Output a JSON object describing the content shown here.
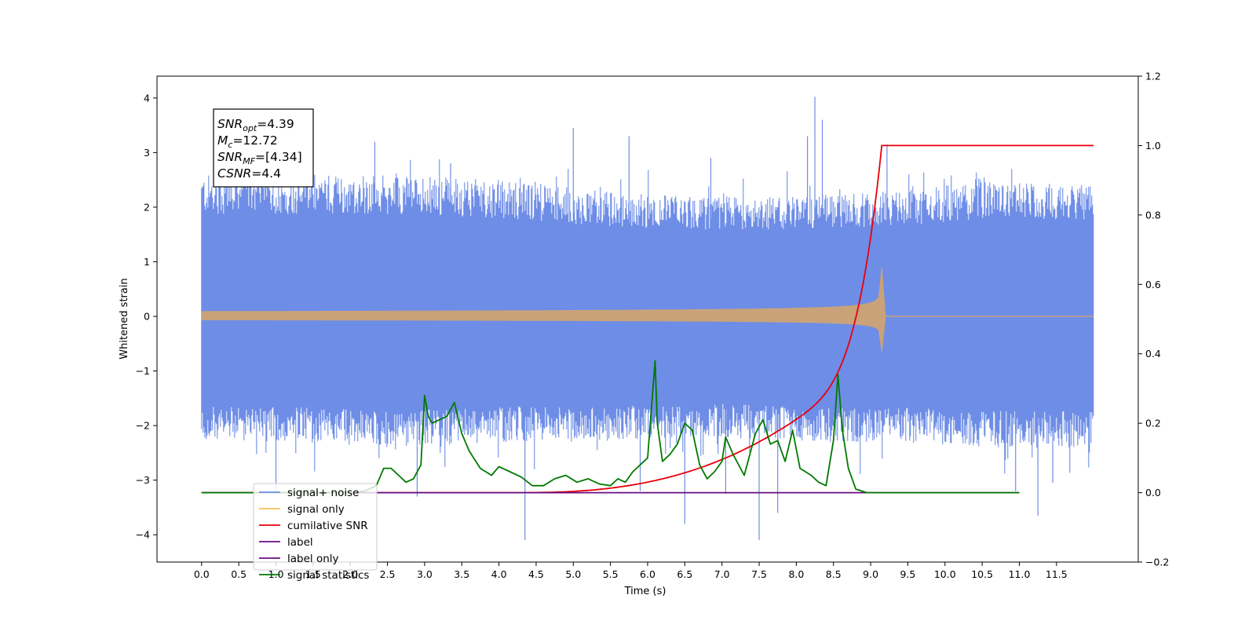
{
  "chart_data": {
    "type": "line",
    "xlabel": "Time (s)",
    "ylabel": "Whitened strain",
    "xlim": [
      -0.6,
      12.6
    ],
    "ylim": [
      -4.5,
      4.4
    ],
    "y2lim": [
      -0.2,
      1.2
    ],
    "x_ticks": [
      "0.0",
      "0.5",
      "1.0",
      "1.5",
      "2.0",
      "2.5",
      "3.0",
      "3.5",
      "4.0",
      "4.5",
      "5.0",
      "5.5",
      "6.0",
      "6.5",
      "7.0",
      "7.5",
      "8.0",
      "8.5",
      "9.0",
      "9.5",
      "10.0",
      "10.5",
      "11.0",
      "11.5"
    ],
    "y_ticks": [
      "4",
      "3",
      "2",
      "1",
      "0",
      "−1",
      "−2",
      "−3",
      "−4"
    ],
    "y2_ticks": [
      "1.2",
      "1.0",
      "0.8",
      "0.6",
      "0.4",
      "0.2",
      "0.0",
      "−0.2"
    ],
    "legend_position": "lower-left",
    "annotation_lines": [
      {
        "base": "SNR",
        "sub": "opt",
        "rest": "=4.39"
      },
      {
        "base": "M",
        "sub": "c",
        "rest": "=12.72"
      },
      {
        "base": "SNR",
        "sub": "MF",
        "rest": "=[4.34]"
      },
      {
        "base": "CSNR",
        "sub": "",
        "rest": "=4.4"
      }
    ],
    "series": [
      {
        "name": "signal+ noise",
        "axis": "left",
        "color": "#6e8de6",
        "x_range": [
          0,
          12.0
        ],
        "envelope_upper": [
          2.6,
          2.6,
          2.6,
          2.5,
          2.3,
          2.2,
          2.2,
          2.3,
          2.5,
          2.4
        ],
        "envelope_lower": [
          -2.3,
          -2.3,
          -2.4,
          -2.3,
          -2.3,
          -2.2,
          -2.3,
          -2.3,
          -2.4,
          -2.4
        ],
        "peaks": [
          {
            "x": 2.33,
            "y": 3.2
          },
          {
            "x": 3.35,
            "y": 2.8
          },
          {
            "x": 5.0,
            "y": 3.45
          },
          {
            "x": 5.75,
            "y": 3.3
          },
          {
            "x": 6.85,
            "y": 2.9
          },
          {
            "x": 8.25,
            "y": 4.02
          },
          {
            "x": 8.35,
            "y": 3.6
          },
          {
            "x": 8.15,
            "y": 3.3
          },
          {
            "x": 9.22,
            "y": 3.15
          },
          {
            "x": 4.35,
            "y": -4.1
          },
          {
            "x": 6.5,
            "y": -3.8
          },
          {
            "x": 7.5,
            "y": -4.1
          },
          {
            "x": 7.75,
            "y": -3.6
          },
          {
            "x": 11.25,
            "y": -3.65
          },
          {
            "x": 1.0,
            "y": -3.2
          },
          {
            "x": 2.9,
            "y": -3.3
          },
          {
            "x": 5.9,
            "y": -3.2
          },
          {
            "x": 7.05,
            "y": -3.25
          },
          {
            "x": 10.95,
            "y": -3.2
          },
          {
            "x": 11.45,
            "y": -3.05
          }
        ]
      },
      {
        "name": "signal only",
        "axis": "left",
        "color": "#fbbf5c",
        "visible_color": "#c9a27a",
        "x_range": [
          0,
          12.0
        ],
        "chirp_end": 9.15,
        "amplitude_start": 0.015,
        "amplitude_end": 0.9
      },
      {
        "name": "cumilative SNR",
        "axis": "right",
        "color": "#e8000b",
        "x": [
          0.0,
          4.5,
          5.0,
          5.5,
          6.0,
          6.5,
          7.0,
          7.5,
          8.0,
          8.5,
          8.8,
          9.0,
          9.1,
          9.15,
          10.0,
          11.0,
          12.0
        ],
        "y": [
          0.0,
          0.0,
          0.01,
          0.03,
          0.07,
          0.11,
          0.155,
          0.205,
          0.27,
          0.38,
          0.52,
          0.7,
          0.87,
          1.0,
          1.0,
          1.0,
          1.0
        ]
      },
      {
        "name": "label",
        "axis": "right",
        "color": "#6a0d83",
        "x": [
          0.0,
          11.0
        ],
        "y": [
          0.0,
          0.0
        ]
      },
      {
        "name": "label only",
        "axis": "right",
        "color": "#6a0d83",
        "hidden": true,
        "x": [],
        "y": []
      },
      {
        "name": "signal statistics",
        "axis": "right",
        "color": "#007a00",
        "x": [
          0.0,
          2.0,
          2.2,
          2.35,
          2.45,
          2.55,
          2.65,
          2.75,
          2.85,
          2.95,
          3.0,
          3.05,
          3.1,
          3.2,
          3.3,
          3.4,
          3.5,
          3.6,
          3.75,
          3.9,
          4.0,
          4.15,
          4.3,
          4.45,
          4.6,
          4.75,
          4.9,
          5.05,
          5.2,
          5.35,
          5.5,
          5.6,
          5.7,
          5.8,
          5.9,
          6.0,
          6.1,
          6.13,
          6.2,
          6.3,
          6.4,
          6.5,
          6.6,
          6.7,
          6.8,
          6.9,
          7.0,
          7.05,
          7.15,
          7.3,
          7.45,
          7.55,
          7.65,
          7.75,
          7.85,
          7.95,
          8.05,
          8.2,
          8.3,
          8.4,
          8.5,
          8.56,
          8.62,
          8.7,
          8.8,
          8.95,
          9.1,
          9.3,
          9.5,
          9.8,
          11.0
        ],
        "y": [
          0.0,
          0.0,
          0.005,
          0.02,
          0.07,
          0.07,
          0.05,
          0.03,
          0.04,
          0.08,
          0.28,
          0.22,
          0.2,
          0.21,
          0.22,
          0.26,
          0.17,
          0.12,
          0.07,
          0.05,
          0.075,
          0.06,
          0.045,
          0.02,
          0.02,
          0.04,
          0.05,
          0.03,
          0.04,
          0.025,
          0.02,
          0.04,
          0.03,
          0.06,
          0.08,
          0.1,
          0.38,
          0.2,
          0.09,
          0.11,
          0.14,
          0.2,
          0.18,
          0.08,
          0.04,
          0.06,
          0.09,
          0.16,
          0.11,
          0.05,
          0.17,
          0.21,
          0.14,
          0.15,
          0.09,
          0.18,
          0.07,
          0.05,
          0.03,
          0.02,
          0.15,
          0.34,
          0.18,
          0.07,
          0.01,
          0.0,
          0.0,
          0.0,
          0.0,
          0.0,
          0.0
        ]
      }
    ]
  }
}
